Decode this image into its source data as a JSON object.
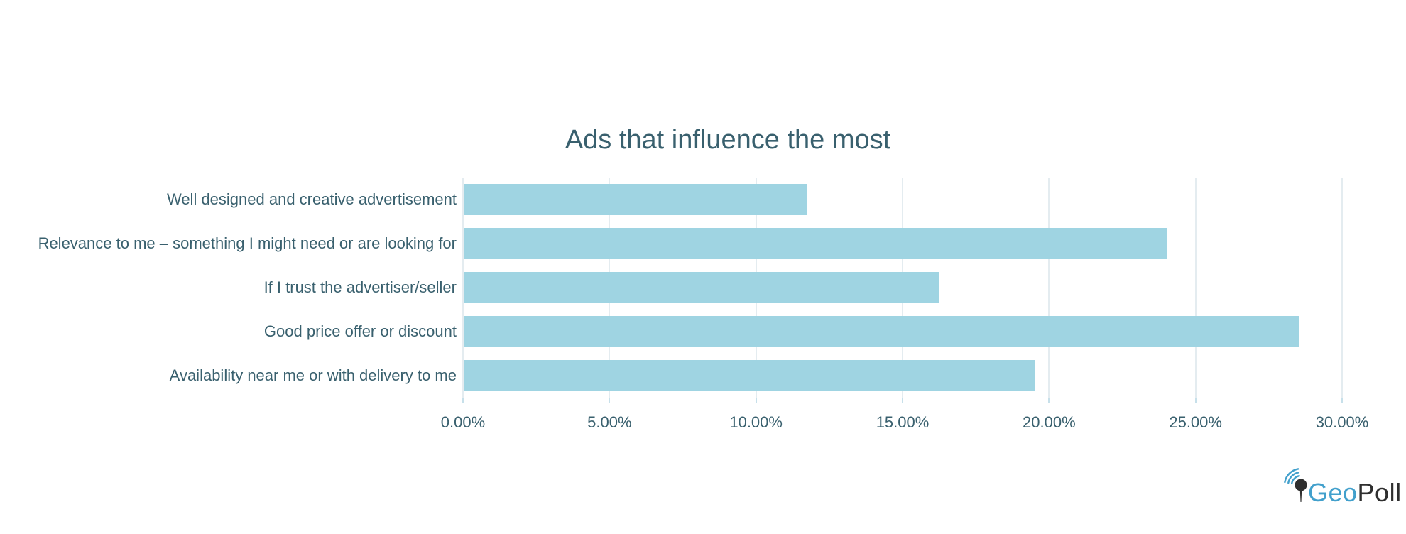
{
  "chart_data": {
    "type": "bar",
    "orientation": "horizontal",
    "title": "Ads that influence the most",
    "categories": [
      "Well designed and creative advertisement",
      "Relevance to me – something I might need or are looking for",
      "If I trust the advertiser/seller",
      "Good price offer or discount",
      "Availability near me or with delivery to me"
    ],
    "values": [
      11.7,
      24.0,
      16.2,
      28.5,
      19.5
    ],
    "unit": "%",
    "xlabel": "",
    "ylabel": "",
    "xlim": [
      0,
      30
    ],
    "xticks": [
      0,
      5,
      10,
      15,
      20,
      25,
      30
    ],
    "xticklabels": [
      "0.00%",
      "5.00%",
      "10.00%",
      "15.00%",
      "20.00%",
      "25.00%",
      "30.00%"
    ],
    "grid": "vertical-gridlines-on",
    "legend": "none",
    "data_labels": "none"
  },
  "colors": {
    "bar_fill": "#9FD4E2",
    "axis_line": "#C7E0EA",
    "gridline": "#E4ECF0",
    "text": "#39606E",
    "logo_blue": "#42A0CC",
    "logo_dark": "#2F2F2F"
  },
  "logo": {
    "geo": "Geo",
    "poll": "Poll",
    "icon": "map-pin-with-signal-arcs"
  }
}
